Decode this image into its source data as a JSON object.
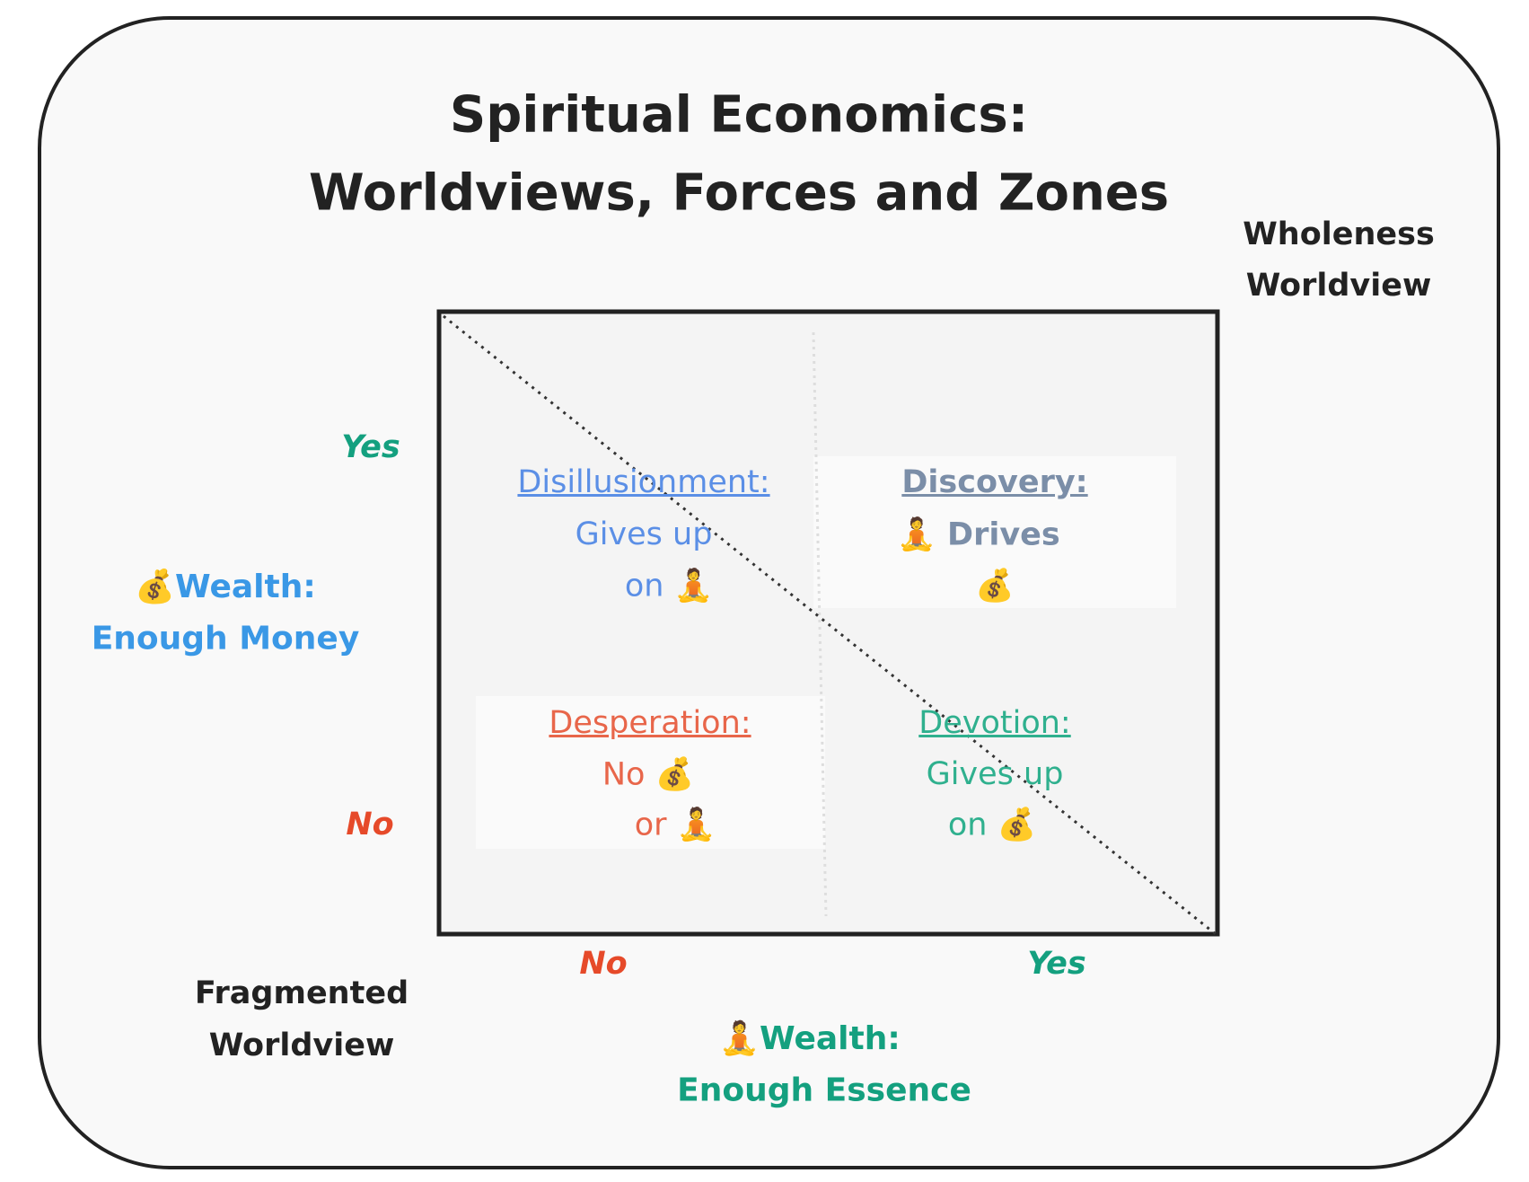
{
  "header": {
    "title": [
      "Spiritual Economics:",
      "Worldviews, Forces and Zones"
    ]
  },
  "corners": {
    "wholeness": [
      "Wholeness",
      "Worldview"
    ],
    "fragmented": [
      "Fragmented",
      "Worldview"
    ]
  },
  "y_axis": {
    "label": [
      "💰Wealth:",
      "Enough Money"
    ],
    "ticks": [
      "Yes",
      "No"
    ]
  },
  "x_axis": {
    "label": [
      "🧘Wealth:",
      "Enough Essence"
    ],
    "ticks": [
      "No",
      "Yes"
    ]
  },
  "quadrants": [
    {
      "heading": "Disillusionment:",
      "lines": [
        "Gives up",
        "on 🧘"
      ]
    },
    {
      "heading": "Discovery:",
      "lines": [
        "🧘 Drives",
        "💰"
      ]
    },
    {
      "heading": "Desperation:",
      "lines": [
        "No 💰",
        "or 🧘"
      ]
    },
    {
      "heading": "Devotion:",
      "lines": [
        "Gives up",
        "on 💰"
      ]
    }
  ]
}
